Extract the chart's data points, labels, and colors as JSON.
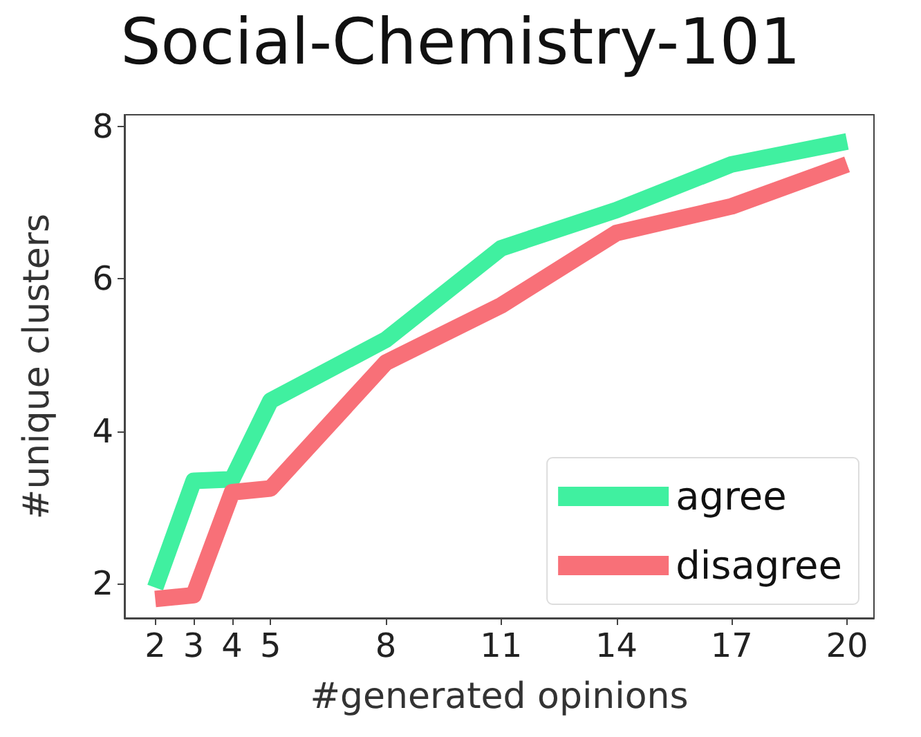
{
  "chart_data": {
    "type": "line",
    "title": "Social-Chemistry-101",
    "xlabel": "#generated opinions",
    "ylabel": "#unique clusters",
    "x": [
      2,
      3,
      4,
      5,
      8,
      11,
      14,
      17,
      20
    ],
    "series": [
      {
        "name": "agree",
        "color": "#40f0a0",
        "values": [
          1.95,
          3.35,
          3.37,
          4.4,
          5.2,
          6.4,
          6.9,
          7.5,
          7.8
        ]
      },
      {
        "name": "disagree",
        "color": "#f87078",
        "values": [
          1.8,
          1.85,
          3.2,
          3.25,
          4.9,
          5.65,
          6.6,
          6.95,
          7.5
        ]
      }
    ],
    "xlim": [
      1.2,
      20.7
    ],
    "xticks": [
      2,
      3,
      4,
      5,
      8,
      11,
      14,
      17,
      20
    ],
    "ylim": [
      1.55,
      8.15
    ],
    "yticks": [
      2,
      4,
      6,
      8
    ],
    "grid": false,
    "legend": "bottom right",
    "marker": "none",
    "line_style": "solid"
  }
}
